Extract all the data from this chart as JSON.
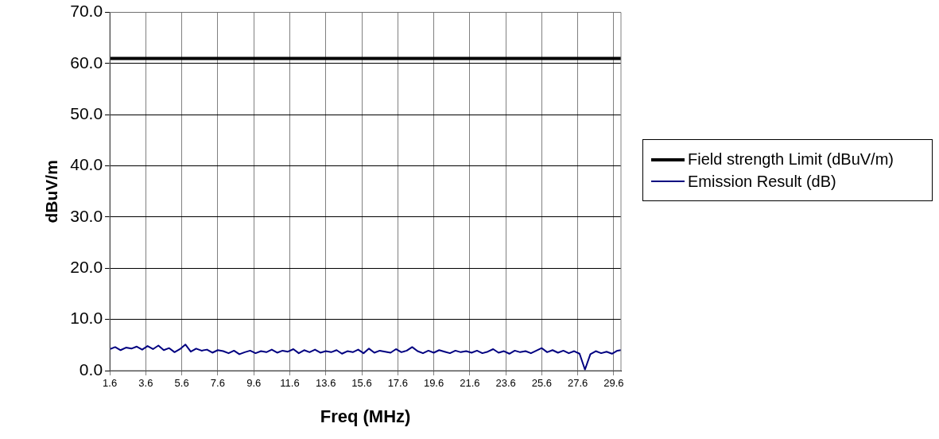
{
  "chart_data": {
    "type": "line",
    "xlabel": "Freq (MHz)",
    "ylabel": "dBuV/m",
    "xlim": [
      1.6,
      30
    ],
    "xticks": [
      1.6,
      3.6,
      5.6,
      7.6,
      9.6,
      11.6,
      13.6,
      15.6,
      17.6,
      19.6,
      21.6,
      23.6,
      25.6,
      27.6,
      29.6
    ],
    "ylim": [
      0,
      70
    ],
    "yticks": [
      {
        "value": 0,
        "label": "0.0"
      },
      {
        "value": 10,
        "label": "10.0"
      },
      {
        "value": 20,
        "label": "20.0"
      },
      {
        "value": 30,
        "label": "30.0"
      },
      {
        "value": 40,
        "label": "40.0"
      },
      {
        "value": 50,
        "label": "50.0"
      },
      {
        "value": 60,
        "label": "60.0"
      },
      {
        "value": 70,
        "label": "70.0"
      }
    ],
    "grid": true,
    "legend": "right",
    "marker": "none",
    "line_style": "solid",
    "series": [
      {
        "name": "Field strength Limit (dBuV/m)",
        "color": "#000000",
        "x": [
          1.6,
          30
        ],
        "values": [
          61,
          61
        ]
      },
      {
        "name": "Emission Result (dB)",
        "color": "#000080",
        "x": [
          1.6,
          1.9,
          2.2,
          2.5,
          2.8,
          3.1,
          3.4,
          3.7,
          4.0,
          4.3,
          4.6,
          4.9,
          5.2,
          5.5,
          5.8,
          6.1,
          6.4,
          6.7,
          7.0,
          7.3,
          7.6,
          7.9,
          8.2,
          8.5,
          8.8,
          9.1,
          9.4,
          9.7,
          10.0,
          10.3,
          10.6,
          10.9,
          11.2,
          11.5,
          11.8,
          12.1,
          12.4,
          12.7,
          13.0,
          13.3,
          13.6,
          13.9,
          14.2,
          14.5,
          14.8,
          15.1,
          15.4,
          15.7,
          16.0,
          16.3,
          16.6,
          16.9,
          17.2,
          17.5,
          17.8,
          18.1,
          18.4,
          18.7,
          19.0,
          19.3,
          19.6,
          19.9,
          20.2,
          20.5,
          20.8,
          21.1,
          21.4,
          21.7,
          22.0,
          22.3,
          22.6,
          22.9,
          23.2,
          23.5,
          23.8,
          24.1,
          24.4,
          24.7,
          25.0,
          25.3,
          25.6,
          25.9,
          26.2,
          26.5,
          26.8,
          27.1,
          27.4,
          27.7,
          28.0,
          28.3,
          28.6,
          28.9,
          29.2,
          29.5,
          29.8,
          30.0
        ],
        "values": [
          4.2,
          4.6,
          4.0,
          4.5,
          4.3,
          4.7,
          4.1,
          4.8,
          4.2,
          4.9,
          4.0,
          4.4,
          3.6,
          4.2,
          5.1,
          3.7,
          4.3,
          3.9,
          4.1,
          3.5,
          4.0,
          3.8,
          3.4,
          3.9,
          3.2,
          3.6,
          3.9,
          3.4,
          3.8,
          3.6,
          4.1,
          3.5,
          3.9,
          3.7,
          4.2,
          3.4,
          4.0,
          3.6,
          4.1,
          3.5,
          3.8,
          3.6,
          4.0,
          3.3,
          3.8,
          3.6,
          4.1,
          3.4,
          4.3,
          3.5,
          3.9,
          3.7,
          3.5,
          4.2,
          3.6,
          3.9,
          4.6,
          3.8,
          3.4,
          3.9,
          3.5,
          4.0,
          3.7,
          3.4,
          3.9,
          3.6,
          3.8,
          3.5,
          3.9,
          3.4,
          3.7,
          4.2,
          3.5,
          3.8,
          3.3,
          3.9,
          3.6,
          3.8,
          3.4,
          3.9,
          4.4,
          3.6,
          4.0,
          3.5,
          3.9,
          3.4,
          3.8,
          3.3,
          0.2,
          3.2,
          3.8,
          3.4,
          3.7,
          3.3,
          3.9,
          4.0
        ]
      }
    ]
  }
}
